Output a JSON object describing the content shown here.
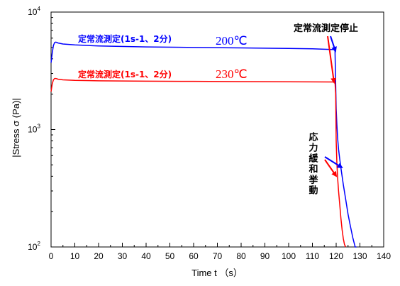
{
  "chart_data": {
    "type": "line",
    "title": "",
    "xlabel": "Time t （s）",
    "ylabel": "|Stress σ (Pa)|",
    "xlim": [
      0,
      140
    ],
    "ylim": [
      100,
      10000
    ],
    "yscale": "log",
    "x_ticks": [
      0,
      10,
      20,
      30,
      40,
      50,
      60,
      70,
      80,
      90,
      100,
      110,
      120,
      130,
      140
    ],
    "x_tick_labels": [
      "0",
      "10",
      "20",
      "30",
      "40",
      "50",
      "60",
      "70",
      "80",
      "90",
      "100",
      "110",
      "120",
      "130",
      "140"
    ],
    "y_ticks": [
      100,
      1000,
      10000
    ],
    "y_tick_labels": [
      {
        "base": "10",
        "exp": "2"
      },
      {
        "base": "10",
        "exp": "3"
      },
      {
        "base": "10",
        "exp": "4"
      }
    ],
    "grid": false,
    "series": [
      {
        "label": "定常流測定(1s-1、2分)",
        "temp": "200℃",
        "color": "#0000ff",
        "x": [
          0,
          0.5,
          1,
          1.5,
          2,
          3,
          5,
          10,
          20,
          40,
          60,
          80,
          100,
          110,
          118,
          119.5,
          120.0,
          120.3,
          120.6,
          121,
          121.5,
          122,
          123,
          124,
          125,
          126,
          127,
          128,
          128.5
        ],
        "y": [
          3700,
          4500,
          5200,
          5500,
          5550,
          5450,
          5350,
          5250,
          5150,
          5050,
          5000,
          4950,
          4900,
          4870,
          4800,
          4800,
          1500,
          1100,
          850,
          680,
          560,
          470,
          340,
          255,
          190,
          150,
          120,
          100,
          93
        ]
      },
      {
        "label": "定常流測定(1s-1、2分)",
        "temp": "230℃",
        "color": "#ff0000",
        "x": [
          0,
          0.5,
          1,
          1.5,
          2,
          3,
          5,
          10,
          20,
          40,
          60,
          80,
          100,
          110,
          118,
          119.5,
          119.8,
          120.0,
          120.3,
          120.6,
          121,
          121.5,
          122,
          122.5,
          123,
          123.5,
          124
        ],
        "y": [
          2100,
          2450,
          2650,
          2720,
          2720,
          2680,
          2650,
          2620,
          2600,
          2580,
          2570,
          2560,
          2550,
          2545,
          2540,
          2540,
          2000,
          800,
          520,
          390,
          300,
          230,
          175,
          140,
          118,
          105,
          95
        ]
      }
    ],
    "annotations": [
      {
        "text": "定常流測定停止"
      },
      {
        "text": "応力緩和挙動"
      }
    ]
  }
}
